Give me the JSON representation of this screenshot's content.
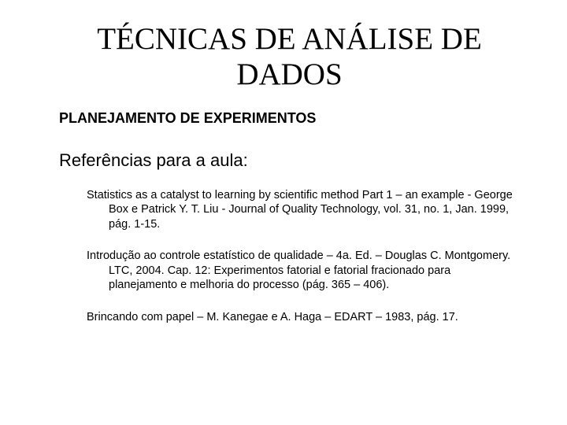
{
  "title": "TÉCNICAS DE ANÁLISE DE DADOS",
  "subtitle": "PLANEJAMENTO DE EXPERIMENTOS",
  "section_heading": "Referências para a aula:",
  "references": [
    "Statistics as a catalyst to learning by scientific method  Part 1 – an example - George Box e Patrick Y. T. Liu - Journal of Quality Technology, vol. 31, no. 1, Jan. 1999, pág. 1-15.",
    "Introdução ao controle estatístico de qualidade – 4a. Ed. – Douglas C. Montgomery. LTC, 2004. Cap. 12: Experimentos fatorial e fatorial fracionado para planejamento e melhoria do processo (pág. 365 – 406).",
    "Brincando com papel – M. Kanegae e A. Haga – EDART – 1983, pág. 17."
  ],
  "colors": {
    "background": "#ffffff",
    "text": "#000000"
  },
  "typography": {
    "title_font": "Times New Roman",
    "body_font": "Arial",
    "title_size_pt": 30,
    "subtitle_size_pt": 14,
    "heading_size_pt": 17,
    "reference_size_pt": 11
  }
}
